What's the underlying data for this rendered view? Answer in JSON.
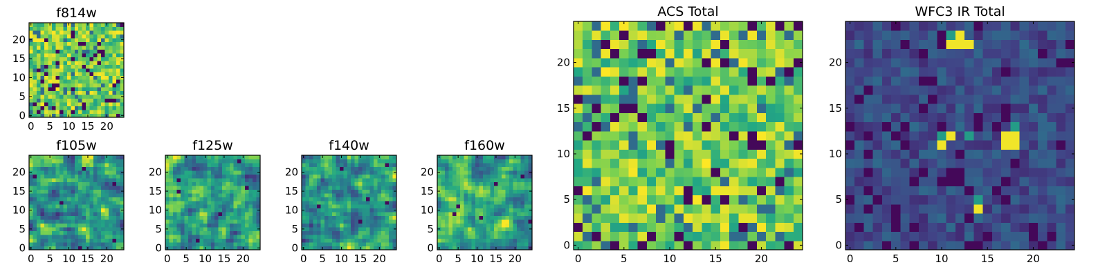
{
  "chart_data": [
    {
      "type": "heatmap",
      "title": "f814w",
      "seed": 11,
      "style": "noisy",
      "grid": 25,
      "xticks": [
        0,
        5,
        10,
        15,
        20
      ],
      "yticks": [
        0,
        5,
        10,
        15,
        20
      ],
      "xlim": [
        0,
        24
      ],
      "ylim": [
        0,
        24
      ]
    },
    {
      "type": "heatmap",
      "title": "f105w",
      "seed": 23,
      "style": "smooth",
      "grid": 25,
      "xticks": [
        0,
        5,
        10,
        15,
        20
      ],
      "yticks": [
        0,
        5,
        10,
        15,
        20
      ],
      "xlim": [
        0,
        24
      ],
      "ylim": [
        0,
        24
      ]
    },
    {
      "type": "heatmap",
      "title": "f125w",
      "seed": 37,
      "style": "smooth",
      "grid": 25,
      "xticks": [
        0,
        5,
        10,
        15,
        20
      ],
      "yticks": [
        0,
        5,
        10,
        15,
        20
      ],
      "xlim": [
        0,
        24
      ],
      "ylim": [
        0,
        24
      ]
    },
    {
      "type": "heatmap",
      "title": "f140w",
      "seed": 41,
      "style": "smooth",
      "grid": 25,
      "xticks": [
        0,
        5,
        10,
        15,
        20
      ],
      "yticks": [
        0,
        5,
        10,
        15,
        20
      ],
      "xlim": [
        0,
        24
      ],
      "ylim": [
        0,
        24
      ]
    },
    {
      "type": "heatmap",
      "title": "f160w",
      "seed": 53,
      "style": "smooth",
      "grid": 25,
      "xticks": [
        0,
        5,
        10,
        15,
        20
      ],
      "yticks": [
        0,
        5,
        10,
        15,
        20
      ],
      "xlim": [
        0,
        24
      ],
      "ylim": [
        0,
        24
      ]
    },
    {
      "type": "heatmap",
      "title": "ACS Total",
      "seed": 67,
      "style": "noisy",
      "grid": 25,
      "xticks": [
        0,
        5,
        10,
        15,
        20
      ],
      "yticks": [
        0,
        5,
        10,
        15,
        20
      ],
      "xlim": [
        0,
        24
      ],
      "ylim": [
        0,
        24
      ]
    },
    {
      "type": "heatmap",
      "title": "WFC3 IR Total",
      "seed": 79,
      "style": "dark",
      "grid": 25,
      "xticks": [
        0,
        5,
        10,
        15,
        20
      ],
      "yticks": [
        0,
        5,
        10,
        15,
        20
      ],
      "xlim": [
        0,
        24
      ],
      "ylim": [
        0,
        24
      ],
      "hotspots": [
        [
          11,
          22
        ],
        [
          12,
          22
        ],
        [
          11,
          23
        ],
        [
          12,
          23
        ],
        [
          13,
          22
        ],
        [
          10,
          12
        ],
        [
          11,
          12
        ],
        [
          10,
          11
        ],
        [
          13,
          12
        ],
        [
          17,
          12
        ],
        [
          18,
          12
        ],
        [
          18,
          13
        ],
        [
          17,
          11
        ],
        [
          18,
          11
        ],
        [
          14,
          5
        ],
        [
          14,
          4
        ]
      ]
    }
  ],
  "colormap": [
    "#440154",
    "#414487",
    "#2a788e",
    "#22a884",
    "#7ad151",
    "#fde725"
  ]
}
